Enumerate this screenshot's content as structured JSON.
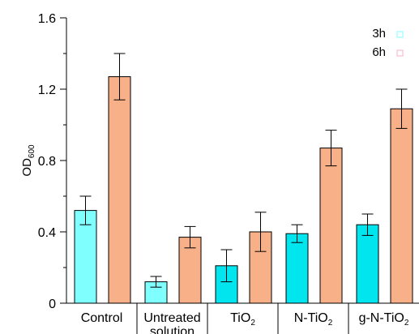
{
  "chart_data": {
    "type": "bar",
    "ylabel_main": "OD",
    "ylabel_sub": "600",
    "ylim": [
      0,
      1.6
    ],
    "yticks": [
      {
        "value": 0,
        "label": "0"
      },
      {
        "value": 0.4,
        "label": "0.4"
      },
      {
        "value": 0.8,
        "label": "0.8"
      },
      {
        "value": 1.2,
        "label": "1.2"
      },
      {
        "value": 1.6,
        "label": "1.6"
      }
    ],
    "categories": [
      {
        "lines": [
          "Control"
        ],
        "sub": ""
      },
      {
        "lines": [
          "Untreated",
          "solution"
        ],
        "sub": ""
      },
      {
        "lines": [
          "TiO"
        ],
        "sub": "2"
      },
      {
        "lines": [
          "N-TiO"
        ],
        "sub": "2"
      },
      {
        "lines": [
          "g-N-TiO"
        ],
        "sub": "2"
      }
    ],
    "series": [
      {
        "name": "3h",
        "colors": [
          "#80ffff",
          "#80ffff",
          "#00e5ee",
          "#00e5ee",
          "#00e5ee"
        ],
        "legend_color": "#80ffff",
        "values": [
          0.52,
          0.12,
          0.21,
          0.39,
          0.44
        ],
        "errors": [
          0.08,
          0.03,
          0.09,
          0.05,
          0.06
        ]
      },
      {
        "name": "6h",
        "colors": [
          "#f8b088",
          "#f8b088",
          "#f8b088",
          "#f8b088",
          "#f8b088"
        ],
        "legend_color": "#f8b0c8",
        "values": [
          1.27,
          0.37,
          0.4,
          0.87,
          1.09
        ],
        "errors": [
          0.13,
          0.06,
          0.11,
          0.1,
          0.11
        ]
      }
    ],
    "grid": false,
    "legend_position": "top-right"
  }
}
